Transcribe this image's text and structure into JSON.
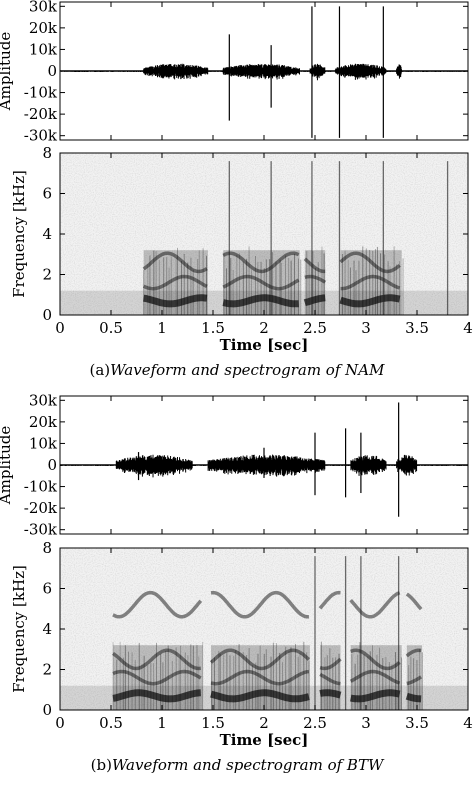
{
  "chart_data": [
    {
      "type": "area",
      "panel": "a",
      "kind": "waveform",
      "ylabel": "Amplitude",
      "xlim": [
        0,
        4
      ],
      "ylim": [
        -32000,
        32000
      ],
      "yticks": [
        30000,
        20000,
        10000,
        0,
        -10000,
        -20000,
        -30000
      ],
      "ytick_labels": [
        "30k",
        "20k",
        "10k",
        "0",
        "-10k",
        "-20k",
        "-30k"
      ],
      "speech_segments": [
        [
          0.82,
          1.45
        ],
        [
          1.6,
          2.35
        ],
        [
          2.45,
          2.6
        ],
        [
          2.7,
          3.2
        ],
        [
          3.3,
          3.35
        ]
      ],
      "speech_level": 2500,
      "spikes": [
        {
          "t": 1.66,
          "max": 17000,
          "min": -23000
        },
        {
          "t": 2.07,
          "max": 12000,
          "min": -17000
        },
        {
          "t": 2.47,
          "max": 30000,
          "min": -31000
        },
        {
          "t": 2.74,
          "max": 30000,
          "min": -31000
        },
        {
          "t": 3.17,
          "max": 30000,
          "min": -31000
        }
      ]
    },
    {
      "type": "heatmap",
      "panel": "a",
      "kind": "spectrogram",
      "ylabel": "Frequency [kHz]",
      "xlabel": "Time [sec]",
      "xlim": [
        0,
        4
      ],
      "ylim": [
        0,
        8
      ],
      "xticks": [
        0,
        0.5,
        1,
        1.5,
        2,
        2.5,
        3,
        3.5,
        4
      ],
      "xtick_labels": [
        "0",
        "0.5",
        "1",
        "1.5",
        "2",
        "2.5",
        "3",
        "3.5",
        "4"
      ],
      "yticks": [
        0,
        2,
        4,
        6,
        8
      ],
      "ytick_labels": [
        "0",
        "2",
        "4",
        "6",
        "8"
      ],
      "speech_segments": [
        [
          0.82,
          1.45
        ],
        [
          1.6,
          2.35
        ],
        [
          2.4,
          2.6
        ],
        [
          2.75,
          3.35
        ]
      ],
      "formant_bands_khz": [
        0.7,
        1.6,
        2.6
      ],
      "click_times": [
        1.66,
        2.07,
        2.47,
        2.74,
        3.17,
        3.8
      ]
    },
    {
      "type": "area",
      "panel": "b",
      "kind": "waveform",
      "ylabel": "Amplitude",
      "xlim": [
        0,
        4
      ],
      "ylim": [
        -32000,
        32000
      ],
      "yticks": [
        30000,
        20000,
        10000,
        0,
        -10000,
        -20000,
        -30000
      ],
      "ytick_labels": [
        "30k",
        "20k",
        "10k",
        "0",
        "-10k",
        "-20k",
        "-30k"
      ],
      "speech_segments": [
        [
          0.55,
          1.3
        ],
        [
          1.45,
          2.6
        ],
        [
          2.85,
          3.2
        ],
        [
          3.3,
          3.5
        ]
      ],
      "speech_level": 3500,
      "spikes": [
        {
          "t": 0.77,
          "max": 6000,
          "min": -7000
        },
        {
          "t": 2.0,
          "max": 8000,
          "min": -6000
        },
        {
          "t": 2.5,
          "max": 15000,
          "min": -14000
        },
        {
          "t": 2.8,
          "max": 17000,
          "min": -15000
        },
        {
          "t": 2.95,
          "max": 15000,
          "min": -13000
        },
        {
          "t": 3.32,
          "max": 29000,
          "min": -24000
        }
      ]
    },
    {
      "type": "heatmap",
      "panel": "b",
      "kind": "spectrogram",
      "ylabel": "Frequency [kHz]",
      "xlabel": "Time [sec]",
      "xlim": [
        0,
        4
      ],
      "ylim": [
        0,
        8
      ],
      "xticks": [
        0,
        0.5,
        1,
        1.5,
        2,
        2.5,
        3,
        3.5,
        4
      ],
      "xtick_labels": [
        "0",
        "0.5",
        "1",
        "1.5",
        "2",
        "2.5",
        "3",
        "3.5",
        "4"
      ],
      "yticks": [
        0,
        2,
        4,
        6,
        8
      ],
      "ytick_labels": [
        "0",
        "2",
        "4",
        "6",
        "8"
      ],
      "speech_segments": [
        [
          0.52,
          1.4
        ],
        [
          1.48,
          2.45
        ],
        [
          2.55,
          2.75
        ],
        [
          2.85,
          3.35
        ],
        [
          3.4,
          3.55
        ]
      ],
      "formant_bands_khz": [
        0.7,
        1.6,
        2.5,
        5.2
      ],
      "click_times": [
        2.5,
        2.8,
        2.95,
        3.32
      ]
    }
  ],
  "captions": {
    "a": {
      "label": "(a)",
      "title": "Waveform and spectrogram of NAM"
    },
    "b": {
      "label": "(b)",
      "title": "Waveform and spectrogram of BTW"
    }
  }
}
